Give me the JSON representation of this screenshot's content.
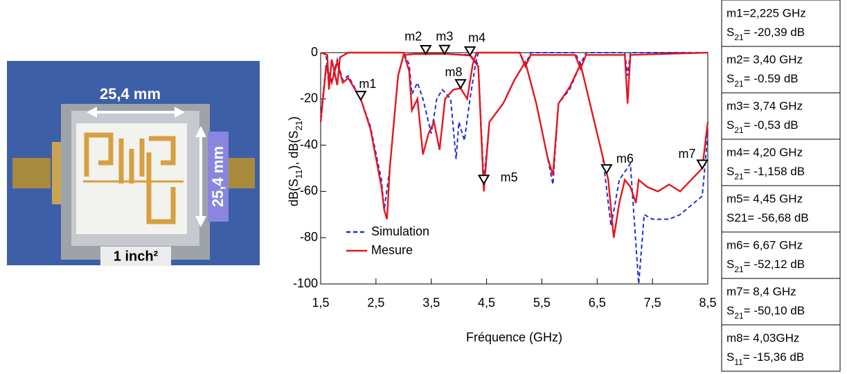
{
  "photo": {
    "width_label": "25,4 mm",
    "height_label": "25,4 mm",
    "size_label": "1 inch²"
  },
  "chart_data": {
    "type": "line",
    "xlabel": "Fréquence (GHz)",
    "ylabel": [
      "dB(S",
      "11",
      "), dB(S",
      "21",
      ")"
    ],
    "xlim": [
      1.5,
      8.5
    ],
    "xticks": [
      {
        "value": 1.5,
        "label": "1,5"
      },
      {
        "value": 2.5,
        "label": "2,5"
      },
      {
        "value": 3.5,
        "label": "3,5"
      },
      {
        "value": 4.5,
        "label": "4,5"
      },
      {
        "value": 5.5,
        "label": "5,5"
      },
      {
        "value": 6.5,
        "label": "6,5"
      },
      {
        "value": 7.5,
        "label": "7,5"
      },
      {
        "value": 8.5,
        "label": "8,5"
      }
    ],
    "ylim": [
      -100,
      0
    ],
    "yticks": [
      0,
      -20,
      -40,
      -60,
      -80,
      -100
    ],
    "legend": "bottom-left",
    "series": [
      {
        "name": "Simulation",
        "color": "#1f2fd8",
        "dashed": true,
        "x": [
          1.5,
          1.6,
          1.7,
          1.8,
          1.9,
          2.0,
          2.225,
          2.4,
          2.6,
          2.65,
          2.75,
          2.9,
          3.0,
          3.2,
          3.4,
          3.74,
          4.2,
          4.35,
          4.45,
          4.55,
          4.8,
          5.0,
          5.2,
          5.4,
          5.6,
          5.7,
          5.8,
          6.0,
          6.2,
          6.4,
          6.6,
          6.75,
          6.9,
          7.1,
          7.25,
          7.35,
          7.5,
          7.8,
          8.0,
          8.2,
          8.4,
          8.5
        ],
        "values": [
          -28,
          -5,
          -12,
          -3,
          -12,
          -10,
          -20,
          -32,
          -55,
          -68,
          -50,
          -10,
          -1,
          -0.6,
          -0.5,
          -0.5,
          -1,
          -5,
          -56,
          -30,
          -22,
          -12,
          -4,
          -22,
          -45,
          -57,
          -22,
          -16,
          -5,
          -25,
          -45,
          -75,
          -55,
          -48,
          -100,
          -70,
          -72,
          -72,
          -70,
          -66,
          -62,
          -35
        ]
      },
      {
        "name": "Mesure",
        "color": "#e8141c",
        "dashed": false,
        "x": [
          1.5,
          1.6,
          1.7,
          1.8,
          1.9,
          2.0,
          2.225,
          2.4,
          2.6,
          2.65,
          2.7,
          2.75,
          2.9,
          3.0,
          3.2,
          3.4,
          3.74,
          4.2,
          4.35,
          4.45,
          4.55,
          4.8,
          5.0,
          5.2,
          5.4,
          5.6,
          5.7,
          5.8,
          6.0,
          6.2,
          6.4,
          6.6,
          6.7,
          6.8,
          6.9,
          7.0,
          7.1,
          7.2,
          7.25,
          7.4,
          7.6,
          7.8,
          8.0,
          8.2,
          8.4,
          8.5
        ],
        "values": [
          -30,
          -6,
          -13,
          -4,
          -13,
          -11,
          -20,
          -33,
          -58,
          -68,
          -72,
          -50,
          -10,
          -1,
          -0.6,
          -0.6,
          -0.5,
          -1.2,
          -6,
          -60,
          -30,
          -22,
          -12,
          -4,
          -22,
          -45,
          -53,
          -22,
          -15,
          -5,
          -25,
          -45,
          -55,
          -80,
          -65,
          -55,
          -58,
          -65,
          -55,
          -58,
          -60,
          -57,
          -60,
          -55,
          -50,
          -30
        ]
      },
      {
        "color": "#1f2fd8",
        "dashed": true,
        "x": [
          1.5,
          1.6,
          1.65,
          1.7,
          1.8,
          1.85,
          2.0,
          3.0,
          3.1,
          3.15,
          3.25,
          3.35,
          3.5,
          3.6,
          3.7,
          3.85,
          3.95,
          4.0,
          4.1,
          4.2,
          4.3,
          4.35,
          5.1,
          5.2,
          5.3,
          6.1,
          6.2,
          6.3,
          7.0,
          7.05,
          7.1,
          8.5
        ],
        "values": [
          0,
          -1,
          -15,
          -3,
          -14,
          -2,
          0,
          0,
          -5,
          -18,
          -13,
          -20,
          -35,
          -20,
          -16,
          -20,
          -46,
          -30,
          -38,
          -20,
          -5,
          0,
          0,
          -5,
          0,
          0,
          -5,
          0,
          0,
          -10,
          0,
          0
        ]
      },
      {
        "color": "#e8141c",
        "dashed": false,
        "x": [
          1.5,
          1.62,
          1.65,
          1.7,
          1.8,
          1.85,
          2.0,
          3.0,
          3.1,
          3.15,
          3.25,
          3.35,
          3.45,
          3.55,
          3.65,
          3.75,
          3.9,
          4.03,
          4.15,
          4.25,
          4.32,
          5.1,
          5.2,
          5.3,
          6.1,
          6.2,
          6.3,
          7.0,
          7.05,
          7.1,
          8.5
        ],
        "values": [
          0,
          -1,
          -16,
          -3,
          -14,
          -2,
          0,
          0,
          -8,
          -25,
          -20,
          -44,
          -35,
          -30,
          -42,
          -20,
          -16,
          -15.4,
          -20,
          -5,
          0,
          0,
          -6,
          -1,
          -1,
          -7,
          -1,
          -1,
          -22,
          -1,
          0
        ]
      }
    ],
    "markers": [
      {
        "name": "m1",
        "x": 2.225,
        "y": -20.39
      },
      {
        "name": "m2",
        "x": 3.4,
        "y": -0.59
      },
      {
        "name": "m3",
        "x": 3.74,
        "y": -0.53
      },
      {
        "name": "m4",
        "x": 4.2,
        "y": -1.158
      },
      {
        "name": "m5",
        "x": 4.45,
        "y": -56.68
      },
      {
        "name": "m6",
        "x": 6.67,
        "y": -52.12
      },
      {
        "name": "m7",
        "x": 8.4,
        "y": -50.1
      },
      {
        "name": "m8",
        "x": 4.03,
        "y": -15.36
      }
    ],
    "marker_table": [
      {
        "freq": "m1=2,225 GHz",
        "param": "S",
        "sub": "21",
        "value": "= -20,39 dB"
      },
      {
        "freq": "m2= 3,40 GHz",
        "param": "S",
        "sub": "21",
        "value": "= -0.59 dB"
      },
      {
        "freq": "m3= 3,74 GHz",
        "param": "S",
        "sub": "21",
        "value": "= -0,53 dB"
      },
      {
        "freq": "m4= 4,20 GHz",
        "param": "S",
        "sub": "21",
        "value": "= -1,158 dB"
      },
      {
        "freq": "m5= 4,45 GHz",
        "param": "S21= -56,68 dB"
      },
      {
        "freq": "m6= 6,67 GHz",
        "param": "S",
        "sub": "21",
        "value": "= -52,12 dB"
      },
      {
        "freq": "m7= 8,4 GHz",
        "param": "S",
        "sub": "21",
        "value": "= -50,10 dB"
      },
      {
        "freq": "m8= 4,03GHz",
        "param": "S",
        "sub": "11",
        "value": "= -15,36 dB"
      }
    ]
  }
}
